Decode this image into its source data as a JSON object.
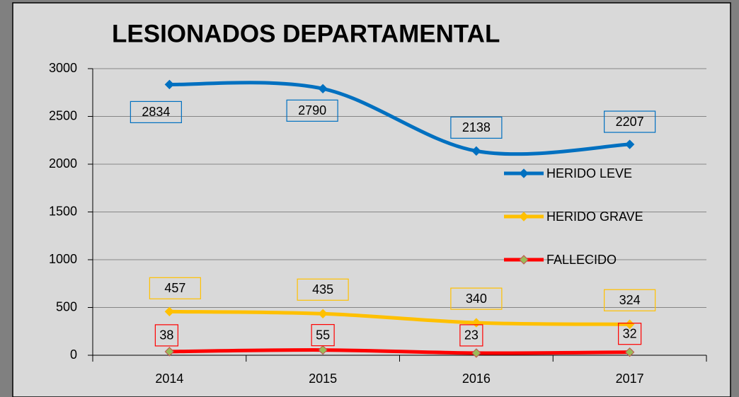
{
  "chart_data": {
    "type": "line",
    "title": "LESIONADOS DEPARTAMENTAL",
    "categories": [
      "2014",
      "2015",
      "2016",
      "2017"
    ],
    "series": [
      {
        "name": "HERIDO LEVE",
        "color": "#0070c0",
        "values": [
          2834,
          2790,
          2138,
          2207
        ]
      },
      {
        "name": "HERIDO GRAVE",
        "color": "#ffc000",
        "values": [
          457,
          435,
          340,
          324
        ]
      },
      {
        "name": "FALLECIDO",
        "color": "#ff0000",
        "values": [
          38,
          55,
          23,
          32
        ]
      }
    ],
    "ylim": [
      0,
      3000
    ],
    "yticks": [
      0,
      500,
      1000,
      1500,
      2000,
      2500,
      3000
    ],
    "grid": true,
    "legend": "right",
    "smooth": true
  }
}
